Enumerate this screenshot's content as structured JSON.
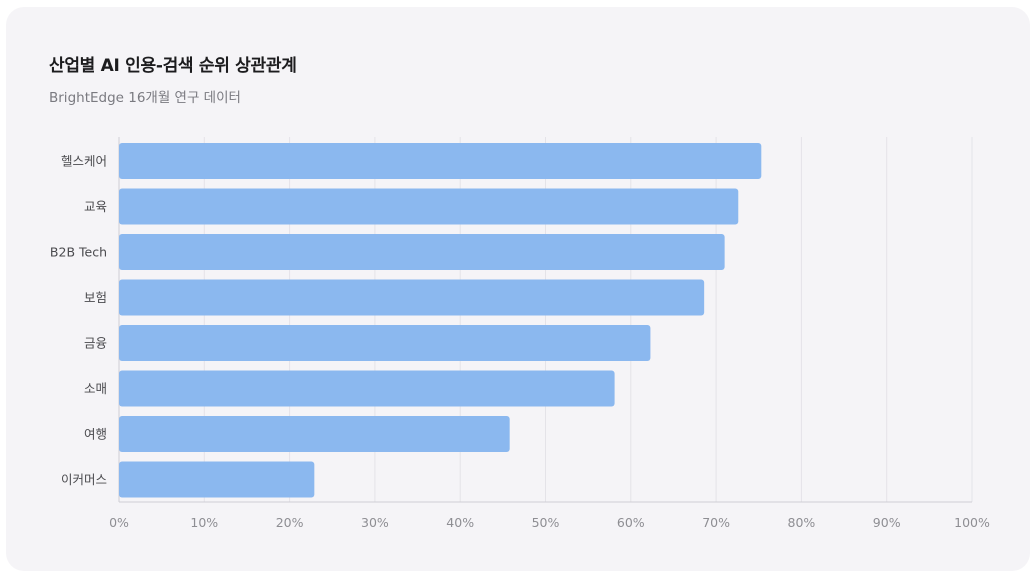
{
  "title": "산업별 AI 인용-검색 순위 상관관계",
  "subtitle": "BrightEdge 16개월 연구 데이터",
  "chart_data": {
    "type": "bar",
    "orientation": "horizontal",
    "categories": [
      "헬스케어",
      "교육",
      "B2B Tech",
      "보험",
      "금융",
      "소매",
      "여행",
      "이커머스"
    ],
    "values": [
      75.3,
      72.6,
      71.0,
      68.6,
      62.3,
      58.1,
      45.8,
      22.9
    ],
    "xlim": [
      0,
      100
    ],
    "xticks": [
      "0%",
      "10%",
      "20%",
      "30%",
      "40%",
      "50%",
      "60%",
      "70%",
      "80%",
      "90%",
      "100%"
    ],
    "grid": true,
    "bar_color": "#8bb8ef"
  }
}
